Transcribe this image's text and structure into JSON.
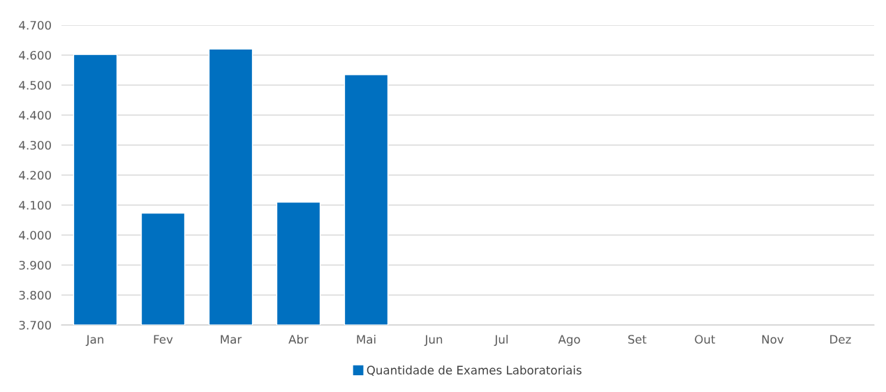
{
  "chart_data": {
    "type": "bar",
    "categories": [
      "Jan",
      "Fev",
      "Mar",
      "Abr",
      "Mai",
      "Jun",
      "Jul",
      "Ago",
      "Set",
      "Out",
      "Nov",
      "Dez"
    ],
    "series": [
      {
        "name": "Quantidade de Exames Laboratoriais",
        "color": "#0070c0",
        "values": [
          4602,
          4073,
          4620,
          4110,
          4535,
          null,
          null,
          null,
          null,
          null,
          null,
          null
        ]
      }
    ],
    "ylim": [
      3700,
      4700
    ],
    "yticks": [
      {
        "value": 3700,
        "label": "3.700"
      },
      {
        "value": 3800,
        "label": "3.800"
      },
      {
        "value": 3900,
        "label": "3.900"
      },
      {
        "value": 4000,
        "label": "4.000"
      },
      {
        "value": 4100,
        "label": "4.100"
      },
      {
        "value": 4200,
        "label": "4.200"
      },
      {
        "value": 4300,
        "label": "4.300"
      },
      {
        "value": 4400,
        "label": "4.400"
      },
      {
        "value": 4500,
        "label": "4.500"
      },
      {
        "value": 4600,
        "label": "4.600"
      },
      {
        "value": 4700,
        "label": "4.700"
      }
    ],
    "grid": "y",
    "legend": "bottom"
  }
}
